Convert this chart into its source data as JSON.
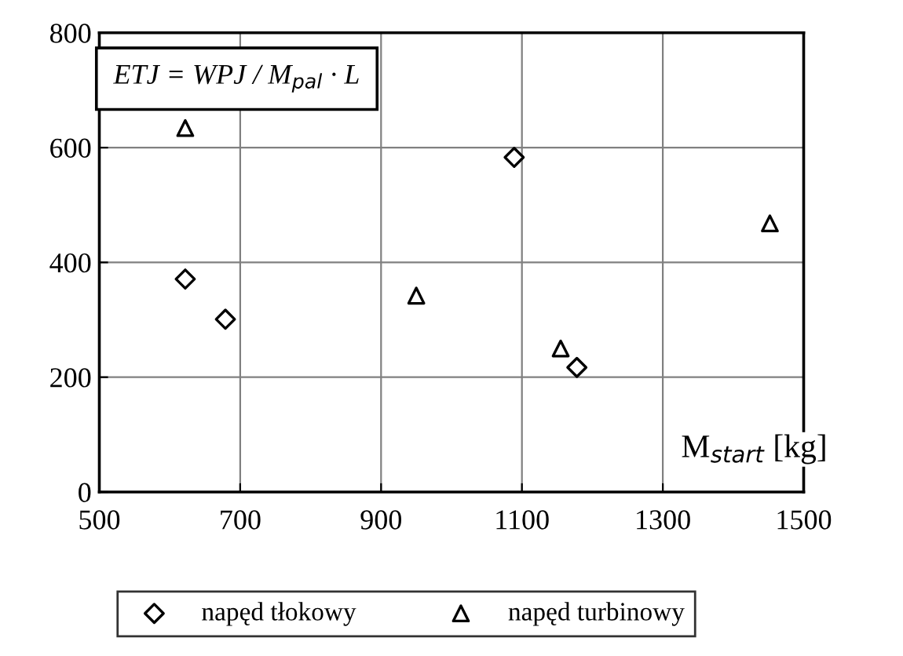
{
  "chart_data": {
    "type": "scatter",
    "xlabel": "M$_{start}$ [kg]",
    "annotations": [
      "ETJ = WPJ / M$_{pal}$ · L"
    ],
    "series": [
      {
        "name": "napęd tłokowy",
        "color": "#000000",
        "marker": "diamond",
        "x": [
          622,
          679,
          1089,
          1178
        ],
        "values": [
          371,
          301,
          583,
          217
        ]
      },
      {
        "name": "napęd turbinowy",
        "color": "#000000",
        "marker": "triangle",
        "x": [
          622,
          950,
          1155,
          1452
        ],
        "values": [
          634,
          342,
          250,
          468
        ]
      }
    ],
    "xlim": [
      500,
      1500
    ],
    "xticks": [
      500,
      700,
      900,
      1100,
      1300,
      1500
    ],
    "ylim": [
      0,
      800
    ],
    "yticks": [
      0,
      200,
      400,
      600,
      800
    ],
    "grid": true,
    "legend": "bottom"
  }
}
